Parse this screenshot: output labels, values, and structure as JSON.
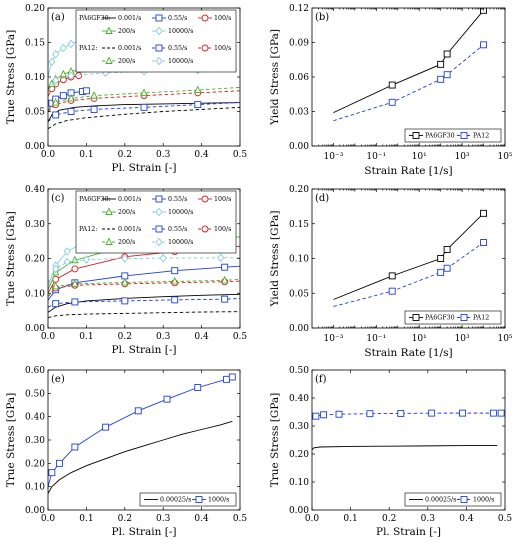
{
  "colors": {
    "c0": "#000000",
    "c1": "#1f3fdc",
    "c2": "#d42020",
    "c3": "#4caf2a",
    "c4": "#87cddd"
  },
  "chart_data": [
    {
      "panel": "a",
      "label": "(a)",
      "type": "line",
      "xlabel": "Pl. Strain [-]",
      "ylabel": "True Stress [GPa]",
      "xlim": [
        0,
        0.5
      ],
      "ylim": [
        0,
        0.2
      ],
      "xticks": [
        0,
        0.1,
        0.2,
        0.3,
        0.4,
        0.5
      ],
      "xticklabels": [
        "0.0",
        "0.1",
        "0.2",
        "0.3",
        "0.4",
        "0.5"
      ],
      "yticks": [
        0,
        0.05,
        0.1,
        0.15,
        0.2
      ],
      "yticklabels": [
        "0.00",
        "0.05",
        "0.10",
        "0.15",
        "0.20"
      ],
      "legend": {
        "placement": "top",
        "layout": "grid6",
        "groups": [
          {
            "title": "PA6GF30:",
            "entries": [
              "0.001/s",
              "0.55/s",
              "100/s",
              "200/s",
              "10000/s"
            ]
          },
          {
            "title": "PA12:",
            "entries": [
              "0.001/s",
              "0.55/s",
              "100/s",
              "200/s",
              "10000/s"
            ]
          }
        ]
      },
      "series": [
        {
          "name": "PA6GF30 0.001/s",
          "color": "c0",
          "dash": "solid",
          "marker": "none",
          "x": [
            0,
            0.01,
            0.03,
            0.07,
            0.12,
            0.2,
            0.3,
            0.4,
            0.5
          ],
          "y": [
            0.035,
            0.045,
            0.052,
            0.056,
            0.058,
            0.06,
            0.061,
            0.062,
            0.063
          ]
        },
        {
          "name": "PA6GF30 0.55/s",
          "color": "c1",
          "dash": "solid",
          "marker": "square",
          "x": [
            0,
            0.01,
            0.02,
            0.04,
            0.06,
            0.09,
            0.1
          ],
          "y": [
            0.05,
            0.062,
            0.068,
            0.073,
            0.077,
            0.079,
            0.08
          ]
        },
        {
          "name": "PA6GF30 100/s",
          "color": "c2",
          "dash": "solid",
          "marker": "circle",
          "x": [
            0,
            0.01,
            0.02,
            0.04,
            0.06,
            0.08
          ],
          "y": [
            0.072,
            0.083,
            0.09,
            0.096,
            0.1,
            0.102
          ]
        },
        {
          "name": "PA6GF30 200/s",
          "color": "c3",
          "dash": "solid",
          "marker": "triangle",
          "x": [
            0,
            0.01,
            0.02,
            0.04,
            0.06,
            0.09
          ],
          "y": [
            0.078,
            0.09,
            0.097,
            0.104,
            0.108,
            0.111
          ]
        },
        {
          "name": "PA6GF30 10000/s",
          "color": "c4",
          "dash": "solid",
          "marker": "diamond",
          "x": [
            0,
            0.01,
            0.02,
            0.04,
            0.06,
            0.09
          ],
          "y": [
            0.1,
            0.122,
            0.133,
            0.142,
            0.148,
            0.155
          ]
        },
        {
          "name": "PA12 0.001/s",
          "color": "c0",
          "dash": "dash",
          "marker": "none",
          "x": [
            0,
            0.02,
            0.05,
            0.1,
            0.2,
            0.3,
            0.4,
            0.5
          ],
          "y": [
            0.025,
            0.032,
            0.037,
            0.041,
            0.046,
            0.05,
            0.053,
            0.056
          ]
        },
        {
          "name": "PA12 0.55/s",
          "color": "c1",
          "dash": "dash",
          "marker": "square",
          "x": [
            0,
            0.02,
            0.06,
            0.12,
            0.25,
            0.39,
            0.5
          ],
          "y": [
            0.035,
            0.045,
            0.05,
            0.053,
            0.056,
            0.06,
            0.063
          ]
        },
        {
          "name": "PA12 100/s",
          "color": "c2",
          "dash": "dash",
          "marker": "circle",
          "x": [
            0,
            0.02,
            0.06,
            0.12,
            0.25,
            0.39,
            0.5
          ],
          "y": [
            0.05,
            0.06,
            0.066,
            0.069,
            0.073,
            0.077,
            0.08
          ]
        },
        {
          "name": "PA12 200/s",
          "color": "c3",
          "dash": "dash",
          "marker": "triangle",
          "x": [
            0,
            0.02,
            0.06,
            0.12,
            0.25,
            0.39,
            0.5
          ],
          "y": [
            0.052,
            0.063,
            0.069,
            0.073,
            0.077,
            0.081,
            0.085
          ]
        },
        {
          "name": "PA12 10000/s",
          "color": "c4",
          "dash": "dash",
          "marker": "diamond",
          "x": [
            0,
            0.02,
            0.06,
            0.15,
            0.25,
            0.39,
            0.5
          ],
          "y": [
            0.08,
            0.095,
            0.102,
            0.106,
            0.108,
            0.11,
            0.112
          ]
        }
      ]
    },
    {
      "panel": "b",
      "label": "(b)",
      "type": "line",
      "xscale": "log",
      "xlabel": "Strain Rate [1/s]",
      "ylabel": "Yield Stress [GPa]",
      "xlim": [
        0.0001,
        100000
      ],
      "ylim": [
        0,
        0.12
      ],
      "xticks": [
        0.001,
        0.1,
        10,
        1000,
        100000
      ],
      "xticklabels": [
        "10⁻³",
        "10⁻¹",
        "10¹",
        "10³",
        "10⁵"
      ],
      "yticks": [
        0,
        0.03,
        0.06,
        0.09,
        0.12
      ],
      "yticklabels": [
        "0.00",
        "0.03",
        "0.06",
        "0.09",
        "0.12"
      ],
      "legend": {
        "placement": "bottom-right",
        "layout": "row",
        "entries": [
          "PA6GF30",
          "PA12"
        ]
      },
      "series": [
        {
          "name": "PA6GF30",
          "color": "c0",
          "dash": "solid",
          "marker": "square",
          "x": [
            0.001,
            0.55,
            100,
            200,
            10000
          ],
          "y": [
            0.029,
            0.053,
            0.071,
            0.08,
            0.118
          ]
        },
        {
          "name": "PA12",
          "color": "c1",
          "dash": "dash",
          "marker": "square",
          "x": [
            0.001,
            0.55,
            100,
            200,
            10000
          ],
          "y": [
            0.022,
            0.038,
            0.058,
            0.062,
            0.088
          ]
        }
      ]
    },
    {
      "panel": "c",
      "label": "(c)",
      "type": "line",
      "xlabel": "Pl. Strain [-]",
      "ylabel": "True Stress [GPa]",
      "xlim": [
        0,
        0.5
      ],
      "ylim": [
        0,
        0.4
      ],
      "xticks": [
        0,
        0.1,
        0.2,
        0.3,
        0.4,
        0.5
      ],
      "xticklabels": [
        "0.0",
        "0.1",
        "0.2",
        "0.3",
        "0.4",
        "0.5"
      ],
      "yticks": [
        0,
        0.1,
        0.2,
        0.3,
        0.4
      ],
      "yticklabels": [
        "0.00",
        "0.10",
        "0.20",
        "0.30",
        "0.40"
      ],
      "legend": {
        "placement": "top",
        "layout": "grid6",
        "groups": [
          {
            "title": "PA6GF30:",
            "entries": [
              "0.001/s",
              "0.55/s",
              "100/s",
              "200/s",
              "10000/s"
            ]
          },
          {
            "title": "PA12:",
            "entries": [
              "0.001/s",
              "0.55/s",
              "100/s",
              "200/s",
              "10000/s"
            ]
          }
        ]
      },
      "series": [
        {
          "name": "PA6GF30 0.001/s",
          "color": "c0",
          "dash": "solid",
          "marker": "none",
          "x": [
            0,
            0.02,
            0.05,
            0.1,
            0.2,
            0.3,
            0.4,
            0.5
          ],
          "y": [
            0.045,
            0.06,
            0.07,
            0.078,
            0.085,
            0.09,
            0.094,
            0.097
          ]
        },
        {
          "name": "PA6GF30 0.55/s",
          "color": "c1",
          "dash": "solid",
          "marker": "square",
          "x": [
            0,
            0.02,
            0.07,
            0.2,
            0.33,
            0.46,
            0.5
          ],
          "y": [
            0.08,
            0.11,
            0.13,
            0.15,
            0.165,
            0.175,
            0.178
          ]
        },
        {
          "name": "PA6GF30 100/s",
          "color": "c2",
          "dash": "solid",
          "marker": "circle",
          "x": [
            0,
            0.02,
            0.07,
            0.2,
            0.33,
            0.46,
            0.5
          ],
          "y": [
            0.1,
            0.14,
            0.17,
            0.205,
            0.22,
            0.232,
            0.235
          ]
        },
        {
          "name": "PA6GF30 200/s",
          "color": "c3",
          "dash": "solid",
          "marker": "triangle",
          "x": [
            0,
            0.02,
            0.07,
            0.2,
            0.33,
            0.46,
            0.5
          ],
          "y": [
            0.11,
            0.16,
            0.195,
            0.235,
            0.25,
            0.26,
            0.262
          ]
        },
        {
          "name": "PA6GF30 10000/s",
          "color": "c4",
          "dash": "solid",
          "marker": "diamond",
          "x": [
            0,
            0.02,
            0.05,
            0.1,
            0.15,
            0.2
          ],
          "y": [
            0.12,
            0.18,
            0.22,
            0.25,
            0.27,
            0.28
          ]
        },
        {
          "name": "PA12 0.001/s",
          "color": "c0",
          "dash": "dash",
          "marker": "none",
          "x": [
            0,
            0.02,
            0.05,
            0.1,
            0.2,
            0.3,
            0.4,
            0.5
          ],
          "y": [
            0.03,
            0.035,
            0.038,
            0.04,
            0.042,
            0.044,
            0.046,
            0.047
          ]
        },
        {
          "name": "PA12 0.55/s",
          "color": "c1",
          "dash": "dash",
          "marker": "square",
          "x": [
            0,
            0.02,
            0.07,
            0.2,
            0.33,
            0.46,
            0.5
          ],
          "y": [
            0.06,
            0.07,
            0.075,
            0.078,
            0.081,
            0.083,
            0.085
          ]
        },
        {
          "name": "PA12 100/s",
          "color": "c2",
          "dash": "dash",
          "marker": "circle",
          "x": [
            0,
            0.02,
            0.07,
            0.2,
            0.33,
            0.46,
            0.5
          ],
          "y": [
            0.09,
            0.115,
            0.123,
            0.127,
            0.13,
            0.133,
            0.135
          ]
        },
        {
          "name": "PA12 200/s",
          "color": "c3",
          "dash": "dash",
          "marker": "triangle",
          "x": [
            0,
            0.02,
            0.07,
            0.2,
            0.33,
            0.46,
            0.5
          ],
          "y": [
            0.09,
            0.12,
            0.127,
            0.131,
            0.134,
            0.137,
            0.14
          ]
        },
        {
          "name": "PA12 10000/s",
          "color": "c4",
          "dash": "dash",
          "marker": "diamond",
          "x": [
            0,
            0.02,
            0.05,
            0.1,
            0.2,
            0.3,
            0.45,
            0.5
          ],
          "y": [
            0.13,
            0.17,
            0.19,
            0.197,
            0.2,
            0.201,
            0.202,
            0.202
          ]
        }
      ]
    },
    {
      "panel": "d",
      "label": "(d)",
      "type": "line",
      "xscale": "log",
      "xlabel": "Strain Rate [1/s]",
      "ylabel": "Yield Stress [GPa]",
      "xlim": [
        0.0001,
        100000
      ],
      "ylim": [
        0,
        0.2
      ],
      "xticks": [
        0.001,
        0.1,
        10,
        1000,
        100000
      ],
      "xticklabels": [
        "10⁻³",
        "10⁻¹",
        "10¹",
        "10³",
        "10⁵"
      ],
      "yticks": [
        0,
        0.05,
        0.1,
        0.15,
        0.2
      ],
      "yticklabels": [
        "0.00",
        "0.05",
        "0.10",
        "0.15",
        "0.20"
      ],
      "legend": {
        "placement": "bottom-right",
        "layout": "row",
        "entries": [
          "PA6GF30",
          "PA12"
        ]
      },
      "series": [
        {
          "name": "PA6GF30",
          "color": "c0",
          "dash": "solid",
          "marker": "square",
          "x": [
            0.001,
            0.55,
            100,
            200,
            10000
          ],
          "y": [
            0.041,
            0.075,
            0.1,
            0.113,
            0.165
          ]
        },
        {
          "name": "PA12",
          "color": "c1",
          "dash": "dash",
          "marker": "square",
          "x": [
            0.001,
            0.55,
            100,
            200,
            10000
          ],
          "y": [
            0.031,
            0.053,
            0.08,
            0.086,
            0.123
          ]
        }
      ]
    },
    {
      "panel": "e",
      "label": "(e)",
      "type": "line",
      "xlabel": "Pl. Strain [-]",
      "ylabel": "True Stress [GPa]",
      "xlim": [
        0,
        0.5
      ],
      "ylim": [
        0,
        0.6
      ],
      "xticks": [
        0,
        0.1,
        0.2,
        0.3,
        0.4,
        0.5
      ],
      "xticklabels": [
        "0.0",
        "0.1",
        "0.2",
        "0.3",
        "0.4",
        "0.5"
      ],
      "yticks": [
        0,
        0.1,
        0.2,
        0.3,
        0.4,
        0.5,
        0.6
      ],
      "yticklabels": [
        "0.00",
        "0.10",
        "0.20",
        "0.30",
        "0.40",
        "0.50",
        "0.60"
      ],
      "legend": {
        "placement": "bottom-right",
        "layout": "row",
        "entries": [
          "0.00025/s",
          "1000/s"
        ]
      },
      "series": [
        {
          "name": "0.00025/s",
          "color": "c0",
          "dash": "solid",
          "marker": "none",
          "x": [
            0,
            0.01,
            0.03,
            0.06,
            0.1,
            0.15,
            0.2,
            0.25,
            0.3,
            0.35,
            0.4,
            0.45,
            0.48
          ],
          "y": [
            0.07,
            0.1,
            0.13,
            0.16,
            0.19,
            0.22,
            0.25,
            0.275,
            0.3,
            0.325,
            0.345,
            0.365,
            0.38
          ]
        },
        {
          "name": "1000/s",
          "color": "c1",
          "dash": "solid",
          "marker": "square",
          "x": [
            0,
            0.01,
            0.03,
            0.07,
            0.15,
            0.235,
            0.31,
            0.39,
            0.465,
            0.48
          ],
          "y": [
            0.1,
            0.16,
            0.2,
            0.27,
            0.355,
            0.425,
            0.475,
            0.525,
            0.56,
            0.57
          ]
        }
      ]
    },
    {
      "panel": "f",
      "label": "(f)",
      "type": "line",
      "xlabel": "Pl. Strain [-]",
      "ylabel": "True Stress [GPa]",
      "xlim": [
        0,
        0.5
      ],
      "ylim": [
        0,
        0.5
      ],
      "xticks": [
        0,
        0.1,
        0.2,
        0.3,
        0.4,
        0.5
      ],
      "xticklabels": [
        "0.0",
        "0.1",
        "0.2",
        "0.3",
        "0.4",
        "0.5"
      ],
      "yticks": [
        0,
        0.1,
        0.2,
        0.3,
        0.4,
        0.5
      ],
      "yticklabels": [
        "0.00",
        "0.10",
        "0.20",
        "0.30",
        "0.40",
        "0.50"
      ],
      "legend": {
        "placement": "bottom-right",
        "layout": "row",
        "entries": [
          "0.00025/s",
          "1000/s"
        ]
      },
      "series": [
        {
          "name": "0.00025/s",
          "color": "c0",
          "dash": "solid",
          "marker": "none",
          "x": [
            0,
            0.005,
            0.02,
            0.1,
            0.2,
            0.3,
            0.4,
            0.48
          ],
          "y": [
            0.215,
            0.222,
            0.225,
            0.227,
            0.228,
            0.229,
            0.23,
            0.23
          ]
        },
        {
          "name": "1000/s",
          "color": "c1",
          "dash": "dash",
          "marker": "square",
          "x": [
            0,
            0.01,
            0.03,
            0.07,
            0.15,
            0.23,
            0.31,
            0.39,
            0.47,
            0.49
          ],
          "y": [
            0.33,
            0.335,
            0.34,
            0.342,
            0.344,
            0.345,
            0.346,
            0.346,
            0.346,
            0.346
          ]
        }
      ]
    }
  ]
}
